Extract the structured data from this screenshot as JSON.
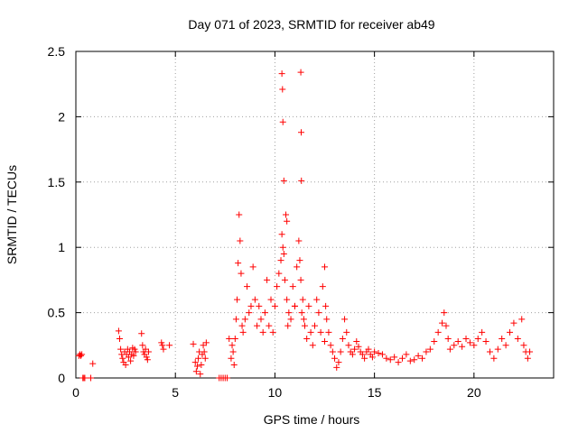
{
  "chart_data": {
    "type": "scatter",
    "title": "Day 071 of 2023, SRMTID for receiver ab49",
    "xlabel": "GPS time / hours",
    "ylabel": "SRMTID / TECUs",
    "xlim": [
      0,
      24
    ],
    "ylim": [
      0,
      2.5
    ],
    "xticks": [
      0,
      5,
      10,
      15,
      20
    ],
    "xtick_labels": [
      "0",
      "5",
      "10",
      "15",
      "20"
    ],
    "yticks": [
      0,
      0.5,
      1,
      1.5,
      2,
      2.5
    ],
    "ytick_labels": [
      "0",
      "0.5",
      "1",
      "1.5",
      "2",
      "2.5"
    ],
    "grid": true,
    "marker": "+",
    "color": "#ff0000",
    "series": [
      {
        "name": "SRMTID",
        "x": [
          0.15,
          0.2,
          0.25,
          0.3,
          0.35,
          0.4,
          0.45,
          0.75,
          0.85,
          2.15,
          2.2,
          2.25,
          2.3,
          2.35,
          2.4,
          2.45,
          2.5,
          2.55,
          2.6,
          2.65,
          2.7,
          2.75,
          2.8,
          2.85,
          2.9,
          2.95,
          3.0,
          3.3,
          3.35,
          3.4,
          3.45,
          3.5,
          3.55,
          3.6,
          3.65,
          4.3,
          4.35,
          4.4,
          4.7,
          5.9,
          6.0,
          6.05,
          6.1,
          6.15,
          6.2,
          6.25,
          6.3,
          6.35,
          6.4,
          6.45,
          6.5,
          6.55,
          7.2,
          7.3,
          7.4,
          7.5,
          7.6,
          7.7,
          7.8,
          7.85,
          7.9,
          7.95,
          8.0,
          8.05,
          8.1,
          8.15,
          8.2,
          8.25,
          8.3,
          8.35,
          8.4,
          8.5,
          8.6,
          8.7,
          8.8,
          8.9,
          9.0,
          9.1,
          9.2,
          9.3,
          9.4,
          9.5,
          9.6,
          9.7,
          9.8,
          9.9,
          10.0,
          10.1,
          10.2,
          10.3,
          10.35,
          10.4,
          10.45,
          10.5,
          10.55,
          10.6,
          10.65,
          10.7,
          10.8,
          10.9,
          11.0,
          11.1,
          11.2,
          11.25,
          11.3,
          11.35,
          11.4,
          11.45,
          11.5,
          11.6,
          11.7,
          11.8,
          11.9,
          12.0,
          12.1,
          12.2,
          12.3,
          12.4,
          12.5,
          12.55,
          12.6,
          12.7,
          12.8,
          12.9,
          13.0,
          13.1,
          13.2,
          13.3,
          13.4,
          13.5,
          13.6,
          13.7,
          13.8,
          13.9,
          14.0,
          14.1,
          14.2,
          14.3,
          14.4,
          14.5,
          14.6,
          14.7,
          14.8,
          14.9,
          15.0,
          15.2,
          15.4,
          15.6,
          15.8,
          16.0,
          16.2,
          16.4,
          16.6,
          16.8,
          17.0,
          17.2,
          17.4,
          17.6,
          17.8,
          18.0,
          18.2,
          18.4,
          18.5,
          18.6,
          18.7,
          18.8,
          19.0,
          19.2,
          19.4,
          19.6,
          19.8,
          20.0,
          20.2,
          20.4,
          20.6,
          20.8,
          21.0,
          21.2,
          21.4,
          21.6,
          21.8,
          22.0,
          22.2,
          22.4,
          22.5,
          22.6,
          22.7,
          22.8,
          10.35,
          10.38,
          10.4,
          11.3,
          11.32,
          11.33,
          10.45,
          10.6,
          11.0,
          12.5
        ],
        "y": [
          0.17,
          0.18,
          0.17,
          0.18,
          0.0,
          0.0,
          0.0,
          0.0,
          0.11,
          0.36,
          0.3,
          0.22,
          0.18,
          0.15,
          0.12,
          0.2,
          0.1,
          0.18,
          0.22,
          0.16,
          0.2,
          0.13,
          0.18,
          0.23,
          0.17,
          0.22,
          0.2,
          0.34,
          0.25,
          0.2,
          0.18,
          0.22,
          0.16,
          0.14,
          0.2,
          0.27,
          0.25,
          0.22,
          0.25,
          0.26,
          0.12,
          0.05,
          0.09,
          0.15,
          0.2,
          0.03,
          0.1,
          0.18,
          0.25,
          0.2,
          0.15,
          0.27,
          0.0,
          0.0,
          0.0,
          0.0,
          0.0,
          0.3,
          0.15,
          0.25,
          0.2,
          0.1,
          0.3,
          0.45,
          0.6,
          0.88,
          1.25,
          1.05,
          0.8,
          0.4,
          0.35,
          0.45,
          0.7,
          0.5,
          0.55,
          0.85,
          0.6,
          0.4,
          0.55,
          0.45,
          0.35,
          0.5,
          0.75,
          0.4,
          0.6,
          0.35,
          0.55,
          0.7,
          0.8,
          0.9,
          1.1,
          1.0,
          0.95,
          0.75,
          1.25,
          0.6,
          0.4,
          0.5,
          0.45,
          0.7,
          0.55,
          0.85,
          1.05,
          0.9,
          0.75,
          0.5,
          0.6,
          0.45,
          0.4,
          0.3,
          0.55,
          0.35,
          0.25,
          0.4,
          0.6,
          0.5,
          0.35,
          0.7,
          0.85,
          0.55,
          0.45,
          0.35,
          0.25,
          0.2,
          0.15,
          0.08,
          0.12,
          0.2,
          0.3,
          0.45,
          0.35,
          0.25,
          0.2,
          0.18,
          0.22,
          0.28,
          0.24,
          0.2,
          0.18,
          0.15,
          0.2,
          0.22,
          0.18,
          0.16,
          0.2,
          0.19,
          0.18,
          0.15,
          0.14,
          0.16,
          0.12,
          0.15,
          0.18,
          0.13,
          0.14,
          0.17,
          0.15,
          0.2,
          0.22,
          0.28,
          0.35,
          0.42,
          0.5,
          0.4,
          0.3,
          0.22,
          0.25,
          0.28,
          0.24,
          0.3,
          0.27,
          0.25,
          0.3,
          0.35,
          0.28,
          0.2,
          0.15,
          0.22,
          0.3,
          0.25,
          0.35,
          0.42,
          0.3,
          0.45,
          0.25,
          0.2,
          0.15,
          0.2,
          2.33,
          2.21,
          1.96,
          2.34,
          1.88,
          1.51,
          1.51,
          1.2,
          0.55,
          0.28
        ]
      }
    ]
  }
}
